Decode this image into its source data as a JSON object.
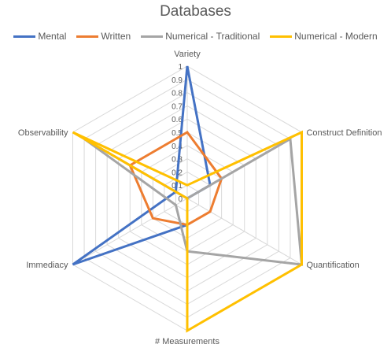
{
  "chart_data": {
    "type": "radar",
    "title": "Databases",
    "legend_position": "top",
    "categories": [
      "Variety",
      "Construct Definition",
      "Quantification",
      "# Measurements",
      "Immediacy",
      "Observability"
    ],
    "scale": {
      "min": 0,
      "max": 1,
      "step": 0.1
    },
    "tick_labels": [
      "0",
      "0.1",
      "0.2",
      "0.3",
      "0.4",
      "0.5",
      "0.6",
      "0.7",
      "0.8",
      "0.9",
      "1"
    ],
    "grid": true,
    "series": [
      {
        "name": "Mental",
        "color": "#4472C4",
        "values": [
          1.0,
          0.2,
          0.0,
          0.2,
          1.0,
          0.1
        ]
      },
      {
        "name": "Written",
        "color": "#ED7D31",
        "values": [
          0.5,
          0.3,
          0.2,
          0.2,
          0.3,
          0.5
        ]
      },
      {
        "name": "Numerical - Traditional",
        "color": "#A5A5A5",
        "values": [
          0.0,
          0.9,
          1.0,
          0.4,
          0.1,
          0.9
        ]
      },
      {
        "name": "Numerical - Modern",
        "color": "#FFC000",
        "values": [
          0.1,
          1.0,
          1.0,
          1.0,
          0.0,
          1.0
        ]
      }
    ]
  }
}
